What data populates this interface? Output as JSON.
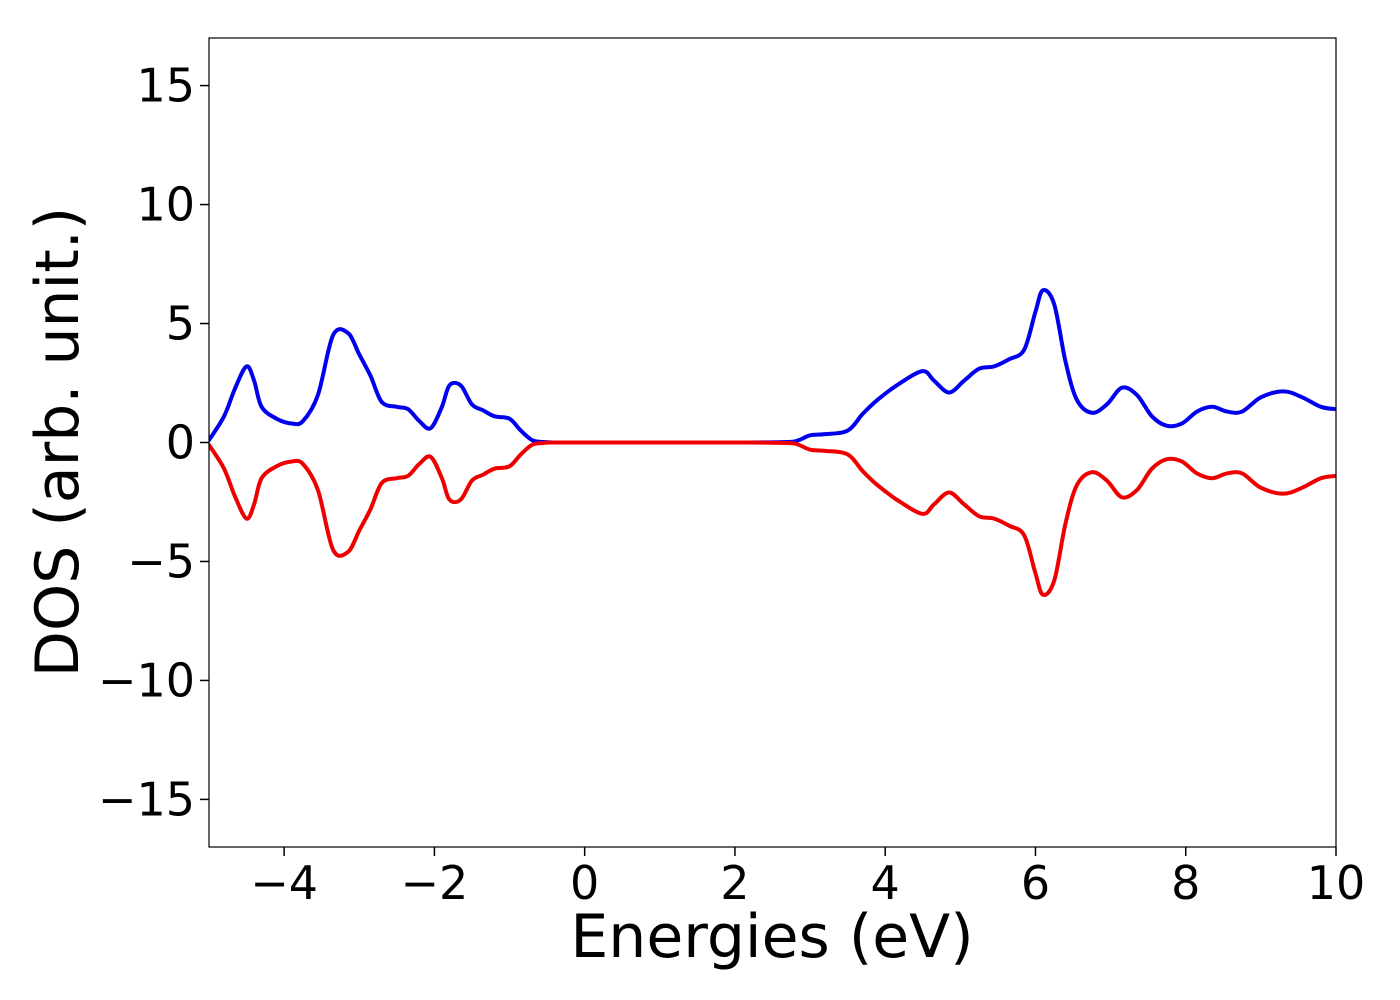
{
  "chart_data": {
    "type": "line",
    "title": "",
    "xlabel": "Energies (eV)",
    "ylabel": "DOS (arb. unit.)",
    "xlim": [
      -5,
      10
    ],
    "ylim": [
      -17,
      17
    ],
    "x_ticks": [
      -4,
      -2,
      0,
      2,
      4,
      6,
      8,
      10
    ],
    "x_tick_labels": [
      "−4",
      "−2",
      "0",
      "2",
      "4",
      "6",
      "8",
      "10"
    ],
    "y_ticks": [
      -15,
      -10,
      -5,
      0,
      5,
      10,
      15
    ],
    "y_tick_labels": [
      "−15",
      "−10",
      "−5",
      "0",
      "5",
      "10",
      "15"
    ],
    "grid": false,
    "legend": "none",
    "x": [
      -5.0,
      -4.8,
      -4.65,
      -4.5,
      -4.4,
      -4.3,
      -4.1,
      -3.9,
      -3.75,
      -3.55,
      -3.35,
      -3.15,
      -3.0,
      -2.85,
      -2.7,
      -2.5,
      -2.35,
      -2.2,
      -2.05,
      -1.9,
      -1.8,
      -1.65,
      -1.5,
      -1.35,
      -1.2,
      -1.0,
      -0.85,
      -0.7,
      -0.55,
      -0.4,
      0.0,
      1.0,
      2.0,
      2.7,
      2.85,
      3.0,
      3.2,
      3.5,
      3.7,
      3.9,
      4.2,
      4.5,
      4.65,
      4.85,
      5.05,
      5.25,
      5.45,
      5.65,
      5.85,
      6.0,
      6.1,
      6.25,
      6.4,
      6.55,
      6.75,
      6.95,
      7.15,
      7.35,
      7.55,
      7.75,
      7.95,
      8.15,
      8.35,
      8.55,
      8.75,
      9.0,
      9.3,
      9.55,
      9.8,
      10.0
    ],
    "series": [
      {
        "color": "#0000ee",
        "values": [
          0.1,
          1.1,
          2.3,
          3.2,
          2.6,
          1.5,
          1.0,
          0.8,
          0.9,
          2.0,
          4.5,
          4.6,
          3.7,
          2.8,
          1.7,
          1.5,
          1.4,
          0.9,
          0.6,
          1.5,
          2.4,
          2.4,
          1.6,
          1.35,
          1.1,
          1.0,
          0.5,
          0.1,
          0.02,
          0.0,
          0.0,
          0.0,
          0.0,
          0.02,
          0.1,
          0.3,
          0.35,
          0.5,
          1.2,
          1.8,
          2.5,
          3.0,
          2.6,
          2.1,
          2.6,
          3.1,
          3.2,
          3.5,
          3.9,
          5.5,
          6.4,
          5.8,
          3.4,
          1.8,
          1.25,
          1.6,
          2.3,
          2.0,
          1.1,
          0.7,
          0.8,
          1.3,
          1.5,
          1.3,
          1.3,
          1.9,
          2.15,
          1.9,
          1.5,
          1.4
        ]
      },
      {
        "color": "#ee0000",
        "values": [
          -0.1,
          -1.1,
          -2.3,
          -3.2,
          -2.6,
          -1.5,
          -1.0,
          -0.8,
          -0.9,
          -2.0,
          -4.5,
          -4.6,
          -3.7,
          -2.8,
          -1.7,
          -1.5,
          -1.4,
          -0.9,
          -0.6,
          -1.5,
          -2.4,
          -2.4,
          -1.6,
          -1.35,
          -1.1,
          -1.0,
          -0.5,
          -0.1,
          -0.02,
          0.0,
          0.0,
          0.0,
          0.0,
          -0.02,
          -0.1,
          -0.3,
          -0.35,
          -0.5,
          -1.2,
          -1.8,
          -2.5,
          -3.0,
          -2.6,
          -2.1,
          -2.6,
          -3.1,
          -3.2,
          -3.5,
          -3.9,
          -5.5,
          -6.4,
          -5.8,
          -3.4,
          -1.8,
          -1.25,
          -1.6,
          -2.3,
          -2.0,
          -1.1,
          -0.7,
          -0.8,
          -1.3,
          -1.5,
          -1.3,
          -1.3,
          -1.9,
          -2.15,
          -1.9,
          -1.5,
          -1.4
        ]
      }
    ]
  }
}
